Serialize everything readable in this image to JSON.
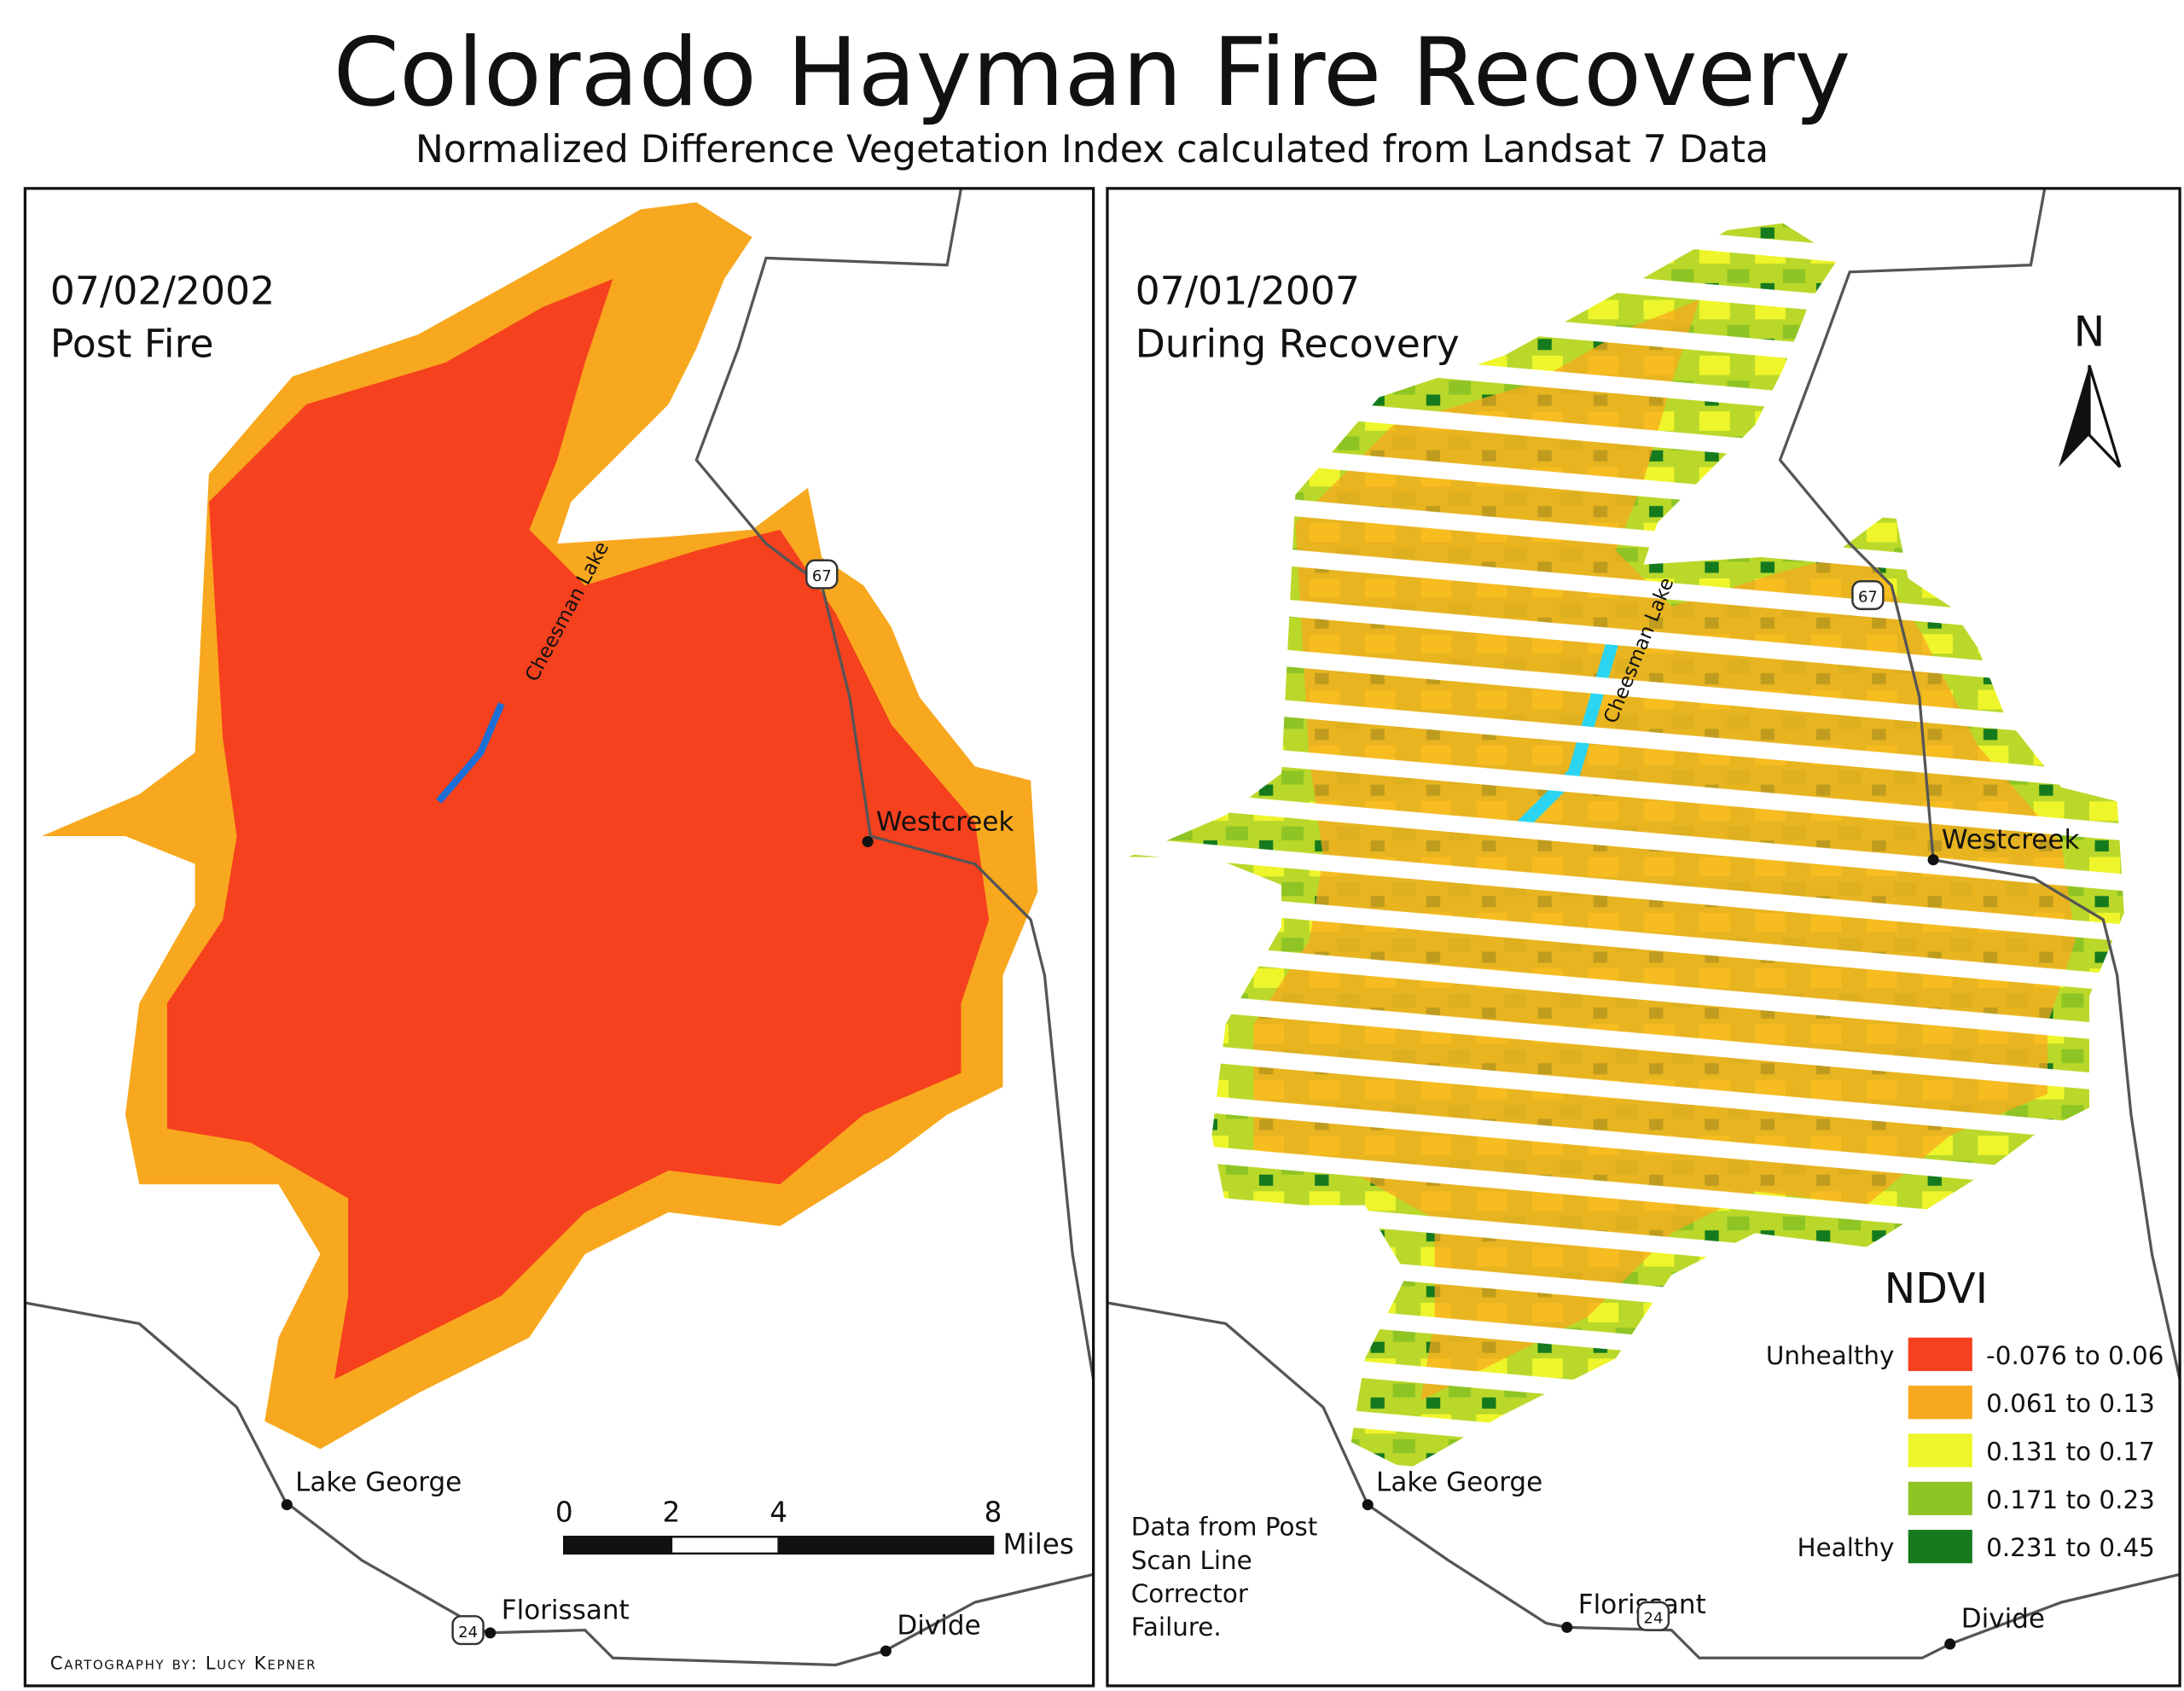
{
  "header": {
    "title": "Colorado Hayman Fire Recovery",
    "subtitle": "Normalized Difference Vegetation Index calculated from Landsat 7 Data"
  },
  "panels": [
    {
      "date": "07/02/2002",
      "label": "Post Fire",
      "places": [
        {
          "name": "Westcreek"
        },
        {
          "name": "Lake George"
        },
        {
          "name": "Florissant"
        },
        {
          "name": "Divide"
        }
      ],
      "lake": "Cheesman Lake",
      "highways": [
        "67",
        "24"
      ]
    },
    {
      "date": "07/01/2007",
      "label": "During Recovery",
      "places": [
        {
          "name": "Westcreek"
        },
        {
          "name": "Lake George"
        },
        {
          "name": "Florissant"
        },
        {
          "name": "Divide"
        }
      ],
      "lake": "Cheesman Lake",
      "highways": [
        "67",
        "24"
      ]
    }
  ],
  "legend": {
    "title": "NDVI",
    "items": [
      {
        "qualifier": "Unhealthy",
        "range": "-0.076 to 0.06",
        "color": "#f5411e"
      },
      {
        "range": "0.061 to 0.13",
        "color": "#f8a81e"
      },
      {
        "range": "0.131 to 0.17",
        "color": "#eef52a"
      },
      {
        "range": "0.171 to 0.23",
        "color": "#8fc425"
      },
      {
        "qualifier": "Healthy",
        "range": "0.231 to 0.45",
        "color": "#157a1e"
      }
    ]
  },
  "scale_bar": {
    "ticks": [
      0,
      2,
      4,
      8
    ],
    "unit": "Miles"
  },
  "north_arrow": "N",
  "note": [
    "Data from Post",
    "Scan Line",
    "Corrector",
    "Failure."
  ],
  "credit": "Cartography by: Lucy Kepner"
}
